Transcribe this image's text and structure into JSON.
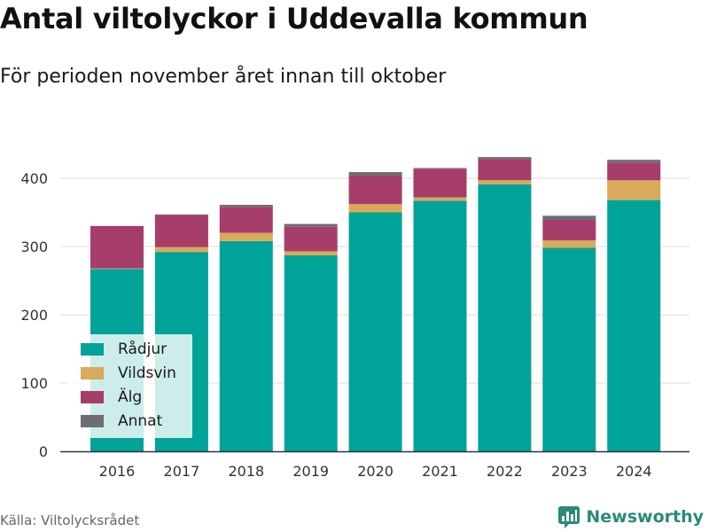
{
  "title": "Antal viltolyckor i Uddevalla kommun",
  "subtitle": "För perioden november året innan till oktober",
  "source": "Källa: Viltolycksrådet",
  "brand": {
    "name": "Newsworthy",
    "icon": "bar-chart-logo-icon"
  },
  "colors": {
    "Rådjur": "#00a398",
    "Vildsvin": "#d9aa5a",
    "Älg": "#a63d6a",
    "Annat": "#6e6e72",
    "brand": "#2a8a7a"
  },
  "chart_data": {
    "type": "bar",
    "stacked": true,
    "categories": [
      "2016",
      "2017",
      "2018",
      "2019",
      "2020",
      "2021",
      "2022",
      "2023",
      "2024"
    ],
    "series": [
      {
        "name": "Rådjur",
        "values": [
          267,
          292,
          308,
          287,
          350,
          367,
          391,
          298,
          368
        ]
      },
      {
        "name": "Vildsvin",
        "values": [
          1,
          7,
          12,
          6,
          12,
          5,
          6,
          11,
          29
        ]
      },
      {
        "name": "Älg",
        "values": [
          62,
          47,
          38,
          36,
          42,
          42,
          31,
          30,
          26
        ]
      },
      {
        "name": "Annat",
        "values": [
          0,
          1,
          3,
          4,
          5,
          1,
          3,
          6,
          4
        ]
      }
    ],
    "ylim": [
      0,
      450
    ],
    "yticks": [
      0,
      100,
      200,
      300,
      400
    ],
    "grid": true,
    "legend": {
      "placement": "bottom-left",
      "entries": [
        "Rådjur",
        "Vildsvin",
        "Älg",
        "Annat"
      ]
    }
  }
}
